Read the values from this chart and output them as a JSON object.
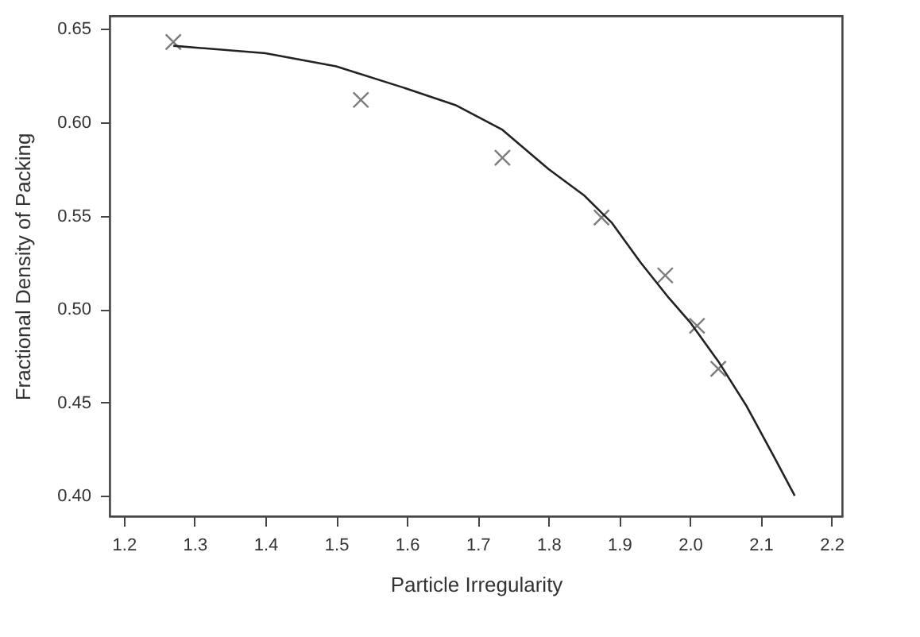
{
  "chart_data": {
    "type": "scatter",
    "xlabel": "Particle Irregularity",
    "ylabel": "Fractional Density of Packing",
    "xlim": [
      1.18,
      2.215
    ],
    "xticks": [
      {
        "value": 1.2,
        "label": "1.2"
      },
      1.3,
      1.4,
      1.5,
      1.6,
      1.7,
      1.8,
      1.9,
      {
        "value": 2.0,
        "label": "2.0"
      },
      2.1,
      {
        "value": 2.2,
        "label": "2.2"
      }
    ],
    "ylim": [
      0.389,
      0.657
    ],
    "yticks": [
      {
        "value": 0.4,
        "label": "0.40"
      },
      {
        "value": 0.45,
        "label": "0.45"
      },
      {
        "value": 0.5,
        "label": "0.50"
      },
      {
        "value": 0.55,
        "label": "0.55"
      },
      {
        "value": 0.6,
        "label": "0.60"
      },
      {
        "value": 0.65,
        "label": "0.65"
      }
    ],
    "grid": false,
    "series": [
      {
        "marker": "cross",
        "color": "#444444",
        "x": [
          1.27,
          1.535,
          1.735,
          1.875,
          1.965,
          2.01,
          2.04
        ],
        "values": [
          0.643,
          0.612,
          0.581,
          0.549,
          0.518,
          0.491,
          0.468
        ]
      },
      {
        "type": "line",
        "marker": "none",
        "color": "#222222",
        "x": [
          1.27,
          1.4,
          1.5,
          1.6,
          1.67,
          1.735,
          1.8,
          1.85,
          1.89,
          1.93,
          1.97,
          2.0,
          2.04,
          2.08,
          2.12,
          2.148
        ],
        "values": [
          0.641,
          0.637,
          0.63,
          0.618,
          0.609,
          0.596,
          0.575,
          0.561,
          0.546,
          0.525,
          0.506,
          0.493,
          0.472,
          0.448,
          0.42,
          0.4
        ]
      }
    ]
  }
}
